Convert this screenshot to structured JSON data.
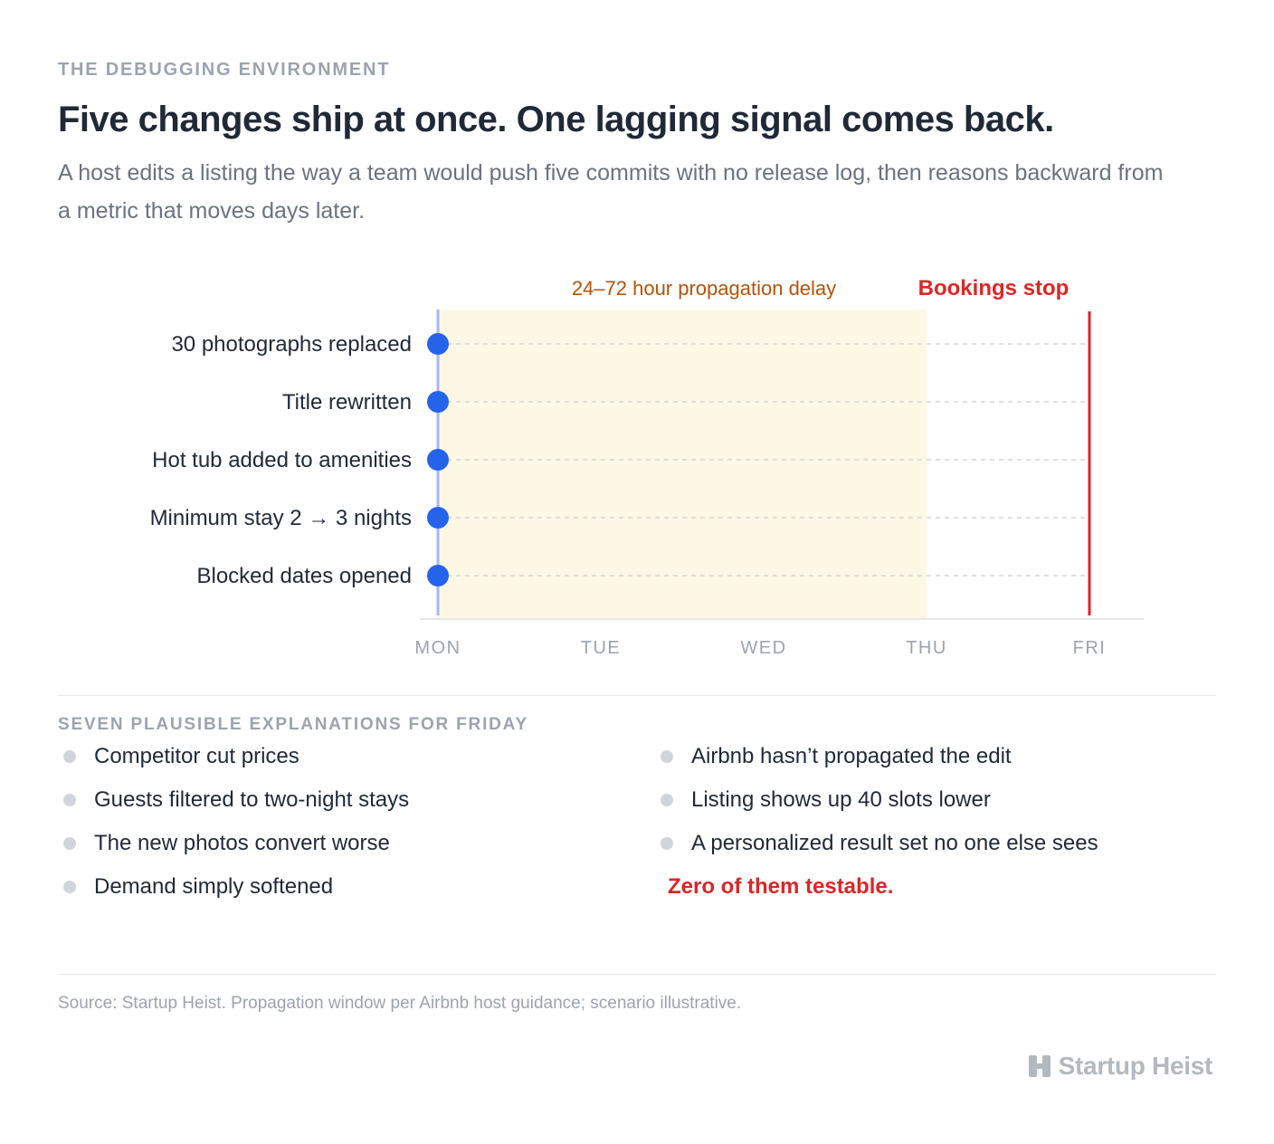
{
  "header": {
    "eyebrow": "THE DEBUGGING ENVIRONMENT",
    "title": "Five changes ship at once. One lagging signal comes back.",
    "subtitle": "A host edits a listing the way a team would push five commits with no release log, then reasons backward from a metric that moves days later."
  },
  "chart_data": {
    "type": "scatter",
    "x_categories": [
      "MON",
      "TUE",
      "WED",
      "THU",
      "FRI"
    ],
    "y_categories": [
      "30 photographs replaced",
      "Title rewritten",
      "Hot tub added to amenities",
      "Minimum stay 2 → 3 nights",
      "Blocked dates opened"
    ],
    "points": [
      {
        "x": "MON",
        "y": "30 photographs replaced"
      },
      {
        "x": "MON",
        "y": "Title rewritten"
      },
      {
        "x": "MON",
        "y": "Hot tub added to amenities"
      },
      {
        "x": "MON",
        "y": "Minimum stay 2 → 3 nights"
      },
      {
        "x": "MON",
        "y": "Blocked dates opened"
      }
    ],
    "shaded_band": {
      "from": "MON",
      "to": "THU",
      "label": "24–72 hour propagation delay",
      "color": "#fdf8e3",
      "label_color": "#b45309"
    },
    "event_line": {
      "at": "FRI",
      "label": "Bookings stop",
      "color": "#dc2626"
    },
    "point_color": "#2563eb",
    "grid": "horizontal dashed"
  },
  "explanations": {
    "heading": "SEVEN PLAUSIBLE EXPLANATIONS FOR FRIDAY",
    "left": [
      "Competitor cut prices",
      "Guests filtered to two-night stays",
      "The new photos convert worse",
      "Demand simply softened"
    ],
    "right": [
      "Airbnb hasn’t propagated the edit",
      "Listing shows up 40 slots lower",
      "A personalized result set no one else sees"
    ],
    "conclusion": "Zero of them testable."
  },
  "footer": {
    "source": "Source: Startup Heist. Propagation window per Airbnb host guidance; scenario illustrative.",
    "brand": "Startup Heist"
  }
}
